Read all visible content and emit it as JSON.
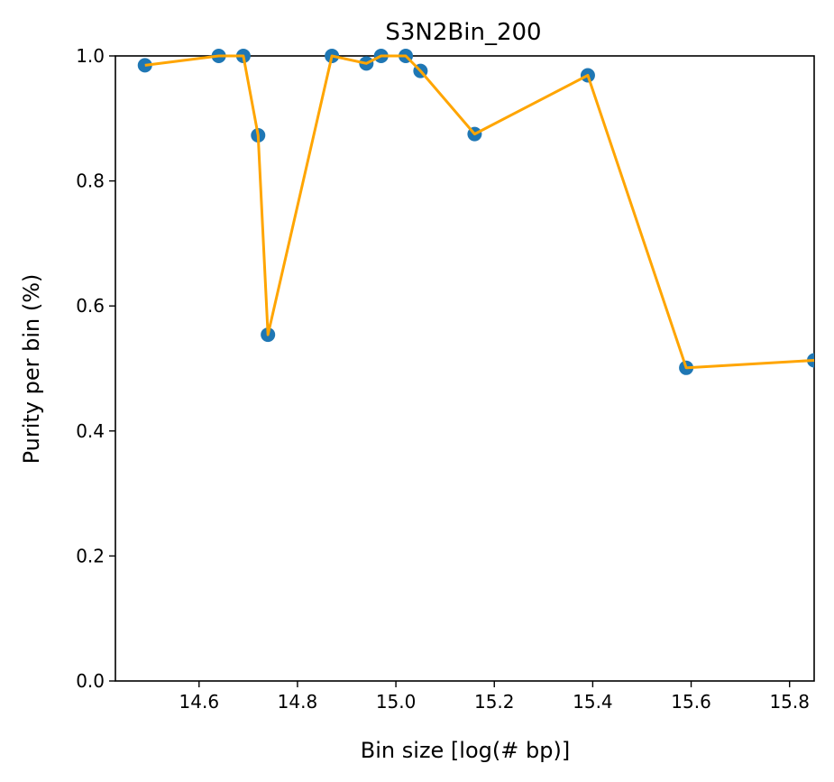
{
  "chart_data": {
    "type": "scatter",
    "title": "S3N2Bin_200",
    "xlabel": "Bin size [log(# bp)]",
    "ylabel": "Purity per bin (%)",
    "xlim": [
      14.43,
      15.85
    ],
    "ylim": [
      0.0,
      1.0
    ],
    "xticks": [
      14.6,
      14.8,
      15.0,
      15.2,
      15.4,
      15.6,
      15.8
    ],
    "yticks": [
      0.0,
      0.2,
      0.4,
      0.6,
      0.8,
      1.0
    ],
    "xtick_labels": [
      "14.6",
      "14.8",
      "15.0",
      "15.2",
      "15.4",
      "15.6",
      "15.8"
    ],
    "ytick_labels": [
      "0.0",
      "0.2",
      "0.4",
      "0.6",
      "0.8",
      "1.0"
    ],
    "grid": false,
    "legend": false,
    "series": [
      {
        "marker_color": "#1f77b4",
        "line_color": "#ffa500",
        "x": [
          14.49,
          14.64,
          14.69,
          14.72,
          14.74,
          14.87,
          14.94,
          14.97,
          15.02,
          15.05,
          15.16,
          15.39,
          15.59,
          15.85
        ],
        "y": [
          0.985,
          1.0,
          1.0,
          0.873,
          0.554,
          1.0,
          0.988,
          1.0,
          1.0,
          0.976,
          0.875,
          0.969,
          0.501,
          0.513
        ]
      }
    ]
  }
}
